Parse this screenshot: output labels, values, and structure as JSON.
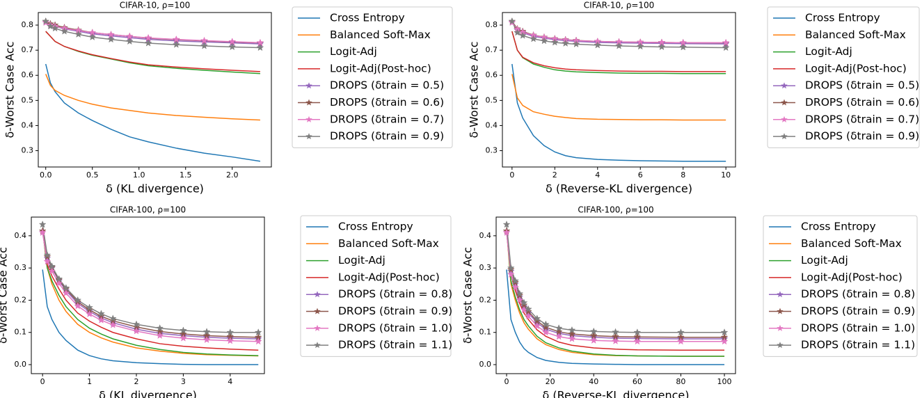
{
  "chart_data": [
    {
      "type": "line",
      "title": "CIFAR-10, ρ=100",
      "x_label": "δ (KL divergence)",
      "y_label": "δ-Worst Case Acc",
      "x": [
        0,
        0.05,
        0.1,
        0.2,
        0.35,
        0.5,
        0.7,
        0.9,
        1.1,
        1.4,
        1.7,
        2.0,
        2.3
      ],
      "xlim": [
        -0.08,
        2.42
      ],
      "xticks": [
        {
          "value": 0,
          "label": "0.0"
        },
        0.5,
        {
          "value": 1,
          "label": "1.0"
        },
        1.5,
        {
          "value": 2,
          "label": "2.0"
        }
      ],
      "ylim": [
        0.235,
        0.85
      ],
      "yticks": [
        0.3,
        0.4,
        0.5,
        0.6,
        0.7,
        0.8
      ],
      "series": [
        {
          "name": "Cross Entropy",
          "color": "#1f77b4",
          "values": [
            0.645,
            0.57,
            0.535,
            0.49,
            0.45,
            0.42,
            0.385,
            0.355,
            0.335,
            0.31,
            0.29,
            0.275,
            0.258
          ]
        },
        {
          "name": "Balanced Soft-Max",
          "color": "#ff7f0e",
          "values": [
            0.605,
            0.56,
            0.54,
            0.52,
            0.5,
            0.485,
            0.47,
            0.46,
            0.45,
            0.44,
            0.433,
            0.427,
            0.422
          ]
        },
        {
          "name": "Logit-Adj",
          "color": "#2ca02c",
          "values": [
            0.775,
            0.755,
            0.735,
            0.715,
            0.695,
            0.68,
            0.665,
            0.65,
            0.638,
            0.628,
            0.62,
            0.613,
            0.607
          ]
        },
        {
          "name": "Logit-Adj(Post-hoc)",
          "color": "#d62728",
          "values": [
            0.775,
            0.755,
            0.735,
            0.715,
            0.697,
            0.682,
            0.667,
            0.653,
            0.642,
            0.633,
            0.626,
            0.62,
            0.615
          ]
        },
        {
          "name": "DROPS (δtrain = 0.5)",
          "color": "#9467bd",
          "marker": "star",
          "values": [
            0.81,
            0.8,
            0.795,
            0.785,
            0.775,
            0.765,
            0.757,
            0.75,
            0.743,
            0.737,
            0.733,
            0.729,
            0.725
          ]
        },
        {
          "name": "DROPS (δtrain = 0.6)",
          "color": "#8c564b",
          "marker": "star",
          "values": [
            0.815,
            0.805,
            0.8,
            0.79,
            0.78,
            0.77,
            0.762,
            0.755,
            0.748,
            0.742,
            0.737,
            0.733,
            0.729
          ]
        },
        {
          "name": "DROPS (δtrain = 0.7)",
          "color": "#e377c2",
          "marker": "star",
          "values": [
            0.81,
            0.8,
            0.795,
            0.787,
            0.778,
            0.77,
            0.762,
            0.755,
            0.749,
            0.743,
            0.738,
            0.734,
            0.73
          ]
        },
        {
          "name": "DROPS (δtrain = 0.9)",
          "color": "#7f7f7f",
          "marker": "star",
          "values": [
            0.815,
            0.795,
            0.787,
            0.775,
            0.763,
            0.752,
            0.743,
            0.735,
            0.728,
            0.722,
            0.717,
            0.713,
            0.71
          ]
        }
      ]
    },
    {
      "type": "line",
      "title": "CIFAR-10, ρ=100",
      "x_label": "δ (Reverse-KL divergence)",
      "y_label": "δ-Worst Case Acc",
      "x": [
        0,
        0.25,
        0.5,
        1,
        1.5,
        2,
        2.5,
        3,
        4,
        5,
        6,
        7,
        8,
        10
      ],
      "xlim": [
        -0.45,
        10.45
      ],
      "xticks": [
        0,
        2,
        4,
        6,
        8,
        10
      ],
      "ylim": [
        0.235,
        0.85
      ],
      "yticks": [
        0.3,
        0.4,
        0.5,
        0.6,
        0.7,
        0.8
      ],
      "series": [
        {
          "name": "Cross Entropy",
          "color": "#1f77b4",
          "values": [
            0.645,
            0.49,
            0.43,
            0.36,
            0.32,
            0.295,
            0.28,
            0.272,
            0.265,
            0.262,
            0.26,
            0.259,
            0.258,
            0.258
          ]
        },
        {
          "name": "Balanced Soft-Max",
          "color": "#ff7f0e",
          "values": [
            0.605,
            0.51,
            0.48,
            0.455,
            0.445,
            0.437,
            0.432,
            0.428,
            0.425,
            0.424,
            0.423,
            0.423,
            0.422,
            0.422
          ]
        },
        {
          "name": "Logit-Adj",
          "color": "#2ca02c",
          "values": [
            0.775,
            0.7,
            0.67,
            0.645,
            0.632,
            0.622,
            0.617,
            0.614,
            0.611,
            0.609,
            0.608,
            0.608,
            0.607,
            0.607
          ]
        },
        {
          "name": "Logit-Adj(Post-hoc)",
          "color": "#d62728",
          "values": [
            0.775,
            0.7,
            0.672,
            0.65,
            0.638,
            0.63,
            0.625,
            0.622,
            0.619,
            0.617,
            0.616,
            0.616,
            0.615,
            0.615
          ]
        },
        {
          "name": "DROPS (δtrain = 0.5)",
          "color": "#9467bd",
          "marker": "star",
          "values": [
            0.81,
            0.78,
            0.77,
            0.755,
            0.748,
            0.742,
            0.738,
            0.735,
            0.731,
            0.729,
            0.728,
            0.727,
            0.726,
            0.725
          ]
        },
        {
          "name": "DROPS (δtrain = 0.6)",
          "color": "#8c564b",
          "marker": "star",
          "values": [
            0.815,
            0.785,
            0.775,
            0.76,
            0.752,
            0.746,
            0.742,
            0.739,
            0.735,
            0.733,
            0.732,
            0.731,
            0.73,
            0.729
          ]
        },
        {
          "name": "DROPS (δtrain = 0.7)",
          "color": "#e377c2",
          "marker": "star",
          "values": [
            0.81,
            0.783,
            0.772,
            0.759,
            0.751,
            0.745,
            0.741,
            0.738,
            0.735,
            0.733,
            0.732,
            0.731,
            0.73,
            0.73
          ]
        },
        {
          "name": "DROPS (δtrain = 0.9)",
          "color": "#7f7f7f",
          "marker": "star",
          "values": [
            0.815,
            0.77,
            0.758,
            0.745,
            0.737,
            0.731,
            0.727,
            0.724,
            0.72,
            0.717,
            0.715,
            0.713,
            0.712,
            0.71
          ]
        }
      ]
    },
    {
      "type": "line",
      "title": "CIFAR-100, ρ=100",
      "x_label": "δ (KL divergence)",
      "y_label": "δ-Worst Case Acc",
      "x": [
        0,
        0.1,
        0.2,
        0.35,
        0.5,
        0.75,
        1,
        1.25,
        1.5,
        2,
        2.5,
        3,
        3.5,
        4,
        4.6
      ],
      "xlim": [
        -0.24,
        4.73
      ],
      "xticks": [
        0,
        1,
        2,
        3,
        4
      ],
      "ylim": [
        -0.028,
        0.458
      ],
      "yticks": [
        {
          "value": 0,
          "label": "0.0"
        },
        0.1,
        0.2,
        0.3,
        0.4
      ],
      "series": [
        {
          "name": "Cross Entropy",
          "color": "#1f77b4",
          "values": [
            0.295,
            0.18,
            0.14,
            0.1,
            0.075,
            0.045,
            0.028,
            0.018,
            0.012,
            0.006,
            0.003,
            0.001,
            0,
            0,
            0
          ]
        },
        {
          "name": "Balanced Soft-Max",
          "color": "#ff7f0e",
          "values": [
            0.42,
            0.3,
            0.25,
            0.2,
            0.165,
            0.125,
            0.1,
            0.083,
            0.07,
            0.052,
            0.042,
            0.035,
            0.031,
            0.029,
            0.027
          ]
        },
        {
          "name": "Logit-Adj",
          "color": "#2ca02c",
          "values": [
            0.42,
            0.3,
            0.26,
            0.215,
            0.18,
            0.14,
            0.113,
            0.095,
            0.08,
            0.06,
            0.047,
            0.038,
            0.033,
            0.03,
            0.028
          ]
        },
        {
          "name": "Logit-Adj(Post-hoc)",
          "color": "#d62728",
          "values": [
            0.42,
            0.31,
            0.275,
            0.235,
            0.2,
            0.16,
            0.135,
            0.116,
            0.1,
            0.08,
            0.065,
            0.057,
            0.052,
            0.048,
            0.045
          ]
        },
        {
          "name": "DROPS (δtrain = 0.8)",
          "color": "#9467bd",
          "marker": "star",
          "values": [
            0.41,
            0.33,
            0.3,
            0.26,
            0.23,
            0.19,
            0.165,
            0.145,
            0.13,
            0.11,
            0.097,
            0.09,
            0.085,
            0.082,
            0.08
          ]
        },
        {
          "name": "DROPS (δtrain = 0.9)",
          "color": "#8c564b",
          "marker": "star",
          "values": [
            0.415,
            0.335,
            0.302,
            0.263,
            0.235,
            0.195,
            0.17,
            0.15,
            0.136,
            0.117,
            0.103,
            0.095,
            0.09,
            0.087,
            0.085
          ]
        },
        {
          "name": "DROPS (δtrain = 1.0)",
          "color": "#e377c2",
          "marker": "star",
          "values": [
            0.41,
            0.32,
            0.29,
            0.252,
            0.222,
            0.182,
            0.157,
            0.138,
            0.123,
            0.104,
            0.09,
            0.082,
            0.077,
            0.074,
            0.072
          ]
        },
        {
          "name": "DROPS (δtrain = 1.1)",
          "color": "#7f7f7f",
          "marker": "star",
          "values": [
            0.435,
            0.34,
            0.305,
            0.266,
            0.238,
            0.2,
            0.177,
            0.158,
            0.143,
            0.125,
            0.113,
            0.106,
            0.102,
            0.1,
            0.1
          ]
        }
      ]
    },
    {
      "type": "line",
      "title": "CIFAR-100, ρ=100",
      "x_label": "δ (Reverse-KL divergence)",
      "y_label": "δ-Worst Case Acc",
      "x": [
        0,
        2,
        4,
        6,
        8,
        10,
        14,
        18,
        24,
        30,
        40,
        50,
        60,
        80,
        100
      ],
      "xlim": [
        -4.8,
        105.1
      ],
      "xticks": [
        0,
        20,
        40,
        60,
        80,
        100
      ],
      "ylim": [
        -0.028,
        0.458
      ],
      "yticks": [
        {
          "value": 0,
          "label": "0.0"
        },
        0.1,
        0.2,
        0.3,
        0.4
      ],
      "series": [
        {
          "name": "Cross Entropy",
          "color": "#1f77b4",
          "values": [
            0.295,
            0.14,
            0.1,
            0.07,
            0.05,
            0.038,
            0.022,
            0.013,
            0.007,
            0.004,
            0.002,
            0.001,
            0,
            0,
            0
          ]
        },
        {
          "name": "Balanced Soft-Max",
          "color": "#ff7f0e",
          "values": [
            0.42,
            0.25,
            0.2,
            0.16,
            0.13,
            0.11,
            0.08,
            0.062,
            0.047,
            0.038,
            0.031,
            0.028,
            0.027,
            0.026,
            0.026
          ]
        },
        {
          "name": "Logit-Adj",
          "color": "#2ca02c",
          "values": [
            0.42,
            0.26,
            0.21,
            0.17,
            0.14,
            0.12,
            0.088,
            0.068,
            0.052,
            0.042,
            0.033,
            0.029,
            0.027,
            0.026,
            0.026
          ]
        },
        {
          "name": "Logit-Adj(Post-hoc)",
          "color": "#d62728",
          "values": [
            0.42,
            0.28,
            0.23,
            0.19,
            0.16,
            0.14,
            0.108,
            0.088,
            0.07,
            0.06,
            0.052,
            0.048,
            0.046,
            0.045,
            0.045
          ]
        },
        {
          "name": "DROPS (δtrain = 0.8)",
          "color": "#9467bd",
          "marker": "star",
          "values": [
            0.41,
            0.29,
            0.25,
            0.21,
            0.18,
            0.16,
            0.13,
            0.11,
            0.097,
            0.09,
            0.085,
            0.082,
            0.081,
            0.08,
            0.08
          ]
        },
        {
          "name": "DROPS (δtrain = 0.9)",
          "color": "#8c564b",
          "marker": "star",
          "values": [
            0.415,
            0.295,
            0.255,
            0.215,
            0.185,
            0.165,
            0.135,
            0.116,
            0.102,
            0.095,
            0.09,
            0.087,
            0.086,
            0.085,
            0.085
          ]
        },
        {
          "name": "DROPS (δtrain = 1.0)",
          "color": "#e377c2",
          "marker": "star",
          "values": [
            0.41,
            0.28,
            0.24,
            0.2,
            0.17,
            0.15,
            0.12,
            0.1,
            0.087,
            0.08,
            0.075,
            0.073,
            0.072,
            0.072,
            0.072
          ]
        },
        {
          "name": "DROPS (δtrain = 1.1)",
          "color": "#7f7f7f",
          "marker": "star",
          "values": [
            0.435,
            0.3,
            0.26,
            0.22,
            0.192,
            0.172,
            0.143,
            0.125,
            0.113,
            0.107,
            0.103,
            0.101,
            0.1,
            0.1,
            0.1
          ]
        }
      ]
    }
  ]
}
